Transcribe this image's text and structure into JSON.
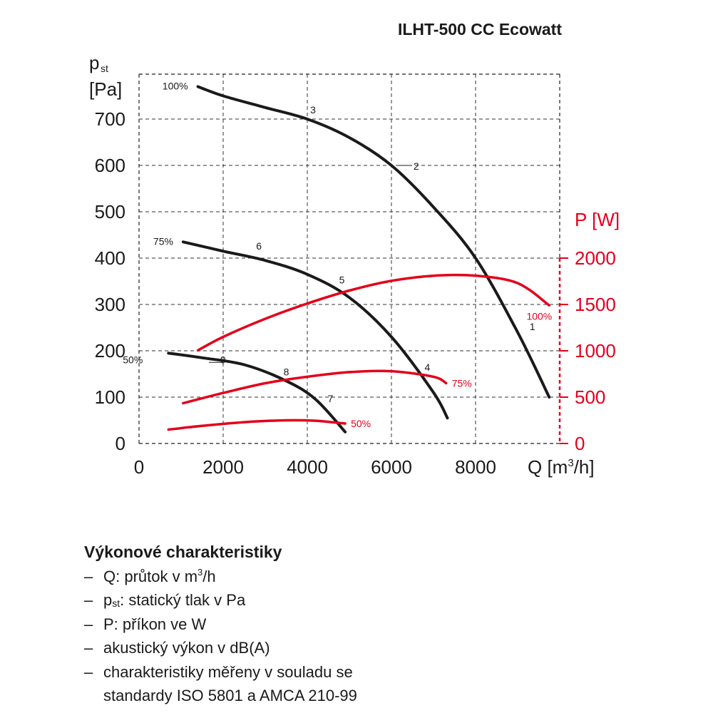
{
  "title": "ILHT-500 CC Ecowatt",
  "chart_data": {
    "type": "line",
    "title": "ILHT-500 CC Ecowatt",
    "x_axis": {
      "label_main": "Q [m",
      "label_sup": "3",
      "label_tail": "/h]",
      "range": [
        0,
        10000
      ],
      "ticks": [
        0,
        2000,
        4000,
        6000,
        8000
      ]
    },
    "y_left": {
      "label_line1": "p",
      "label_sub": "st",
      "label_line2": "[Pa]",
      "range": [
        0,
        800
      ],
      "ticks": [
        0,
        100,
        200,
        300,
        400,
        500,
        600,
        700
      ]
    },
    "y_right": {
      "label": "P [W]",
      "range": [
        0,
        2000
      ],
      "ticks": [
        0,
        500,
        1000,
        1500,
        2000
      ],
      "color": "#e3001b"
    },
    "grid": true,
    "pressure_series": [
      {
        "name": "100%",
        "color": "#1a1a1a",
        "x": [
          1400,
          2000,
          3000,
          4000,
          5000,
          6000,
          7000,
          8000,
          9000,
          9750
        ],
        "y": [
          770,
          750,
          725,
          700,
          660,
          600,
          510,
          400,
          240,
          100
        ]
      },
      {
        "name": "75%",
        "color": "#1a1a1a",
        "x": [
          1050,
          2000,
          3000,
          4000,
          5000,
          6000,
          7000,
          7330
        ],
        "y": [
          435,
          415,
          395,
          365,
          315,
          230,
          110,
          55
        ]
      },
      {
        "name": "50%",
        "color": "#1a1a1a",
        "x": [
          700,
          1500,
          2500,
          3500,
          4200,
          4900
        ],
        "y": [
          195,
          185,
          170,
          135,
          95,
          25
        ]
      }
    ],
    "power_series": [
      {
        "name": "100%",
        "color": "#e3001b",
        "x": [
          1400,
          2000,
          3000,
          4000,
          5000,
          6000,
          7000,
          8000,
          9000,
          9750
        ],
        "y": [
          1005,
          1150,
          1345,
          1510,
          1650,
          1755,
          1810,
          1810,
          1730,
          1490
        ]
      },
      {
        "name": "75%",
        "color": "#e3001b",
        "x": [
          1050,
          2000,
          3000,
          4000,
          5000,
          6000,
          7000,
          7300
        ],
        "y": [
          435,
          545,
          650,
          720,
          770,
          780,
          720,
          650
        ]
      },
      {
        "name": "50%",
        "color": "#e3001b",
        "x": [
          700,
          1500,
          2500,
          3500,
          4200,
          4900
        ],
        "y": [
          150,
          190,
          230,
          250,
          245,
          215
        ]
      }
    ],
    "operating_points": [
      {
        "label": "1",
        "x": 9350,
        "y": 245
      },
      {
        "label": "2",
        "x": 6150,
        "y": 600
      },
      {
        "label": "3",
        "x": 4000,
        "y": 700
      },
      {
        "label": "4",
        "x": 6820,
        "y": 145
      },
      {
        "label": "5",
        "x": 4720,
        "y": 330
      },
      {
        "label": "6",
        "x": 2850,
        "y": 405
      },
      {
        "label": "7",
        "x": 4550,
        "y": 80
      },
      {
        "label": "8",
        "x": 3500,
        "y": 135
      },
      {
        "label": "9",
        "x": 2000,
        "y": 175
      }
    ],
    "curve_labels": [
      {
        "text": "100%",
        "series": "pressure",
        "color": "#1a1a1a"
      },
      {
        "text": "75%",
        "series": "pressure",
        "color": "#1a1a1a"
      },
      {
        "text": "50%",
        "series": "pressure",
        "color": "#1a1a1a"
      },
      {
        "text": "100%",
        "series": "power",
        "color": "#e3001b"
      },
      {
        "text": "75%",
        "series": "power",
        "color": "#e3001b"
      },
      {
        "text": "50%",
        "series": "power",
        "color": "#e3001b"
      }
    ]
  },
  "legend": {
    "heading": "Výkonové charakteristiky",
    "dash": "–",
    "q_main": "Q: průtok v m",
    "q_sup": "3",
    "q_tail": "/h",
    "pst_main": "p",
    "pst_sub": "st",
    "pst_tail": ": statický tlak v Pa",
    "p": "P: příkon ve W",
    "acoustic": "akustický výkon v dB(A)",
    "measured_line1": "charakteristiky měřeny v souladu se",
    "measured_line2": "standardy ISO 5801 a AMCA 210-99"
  }
}
